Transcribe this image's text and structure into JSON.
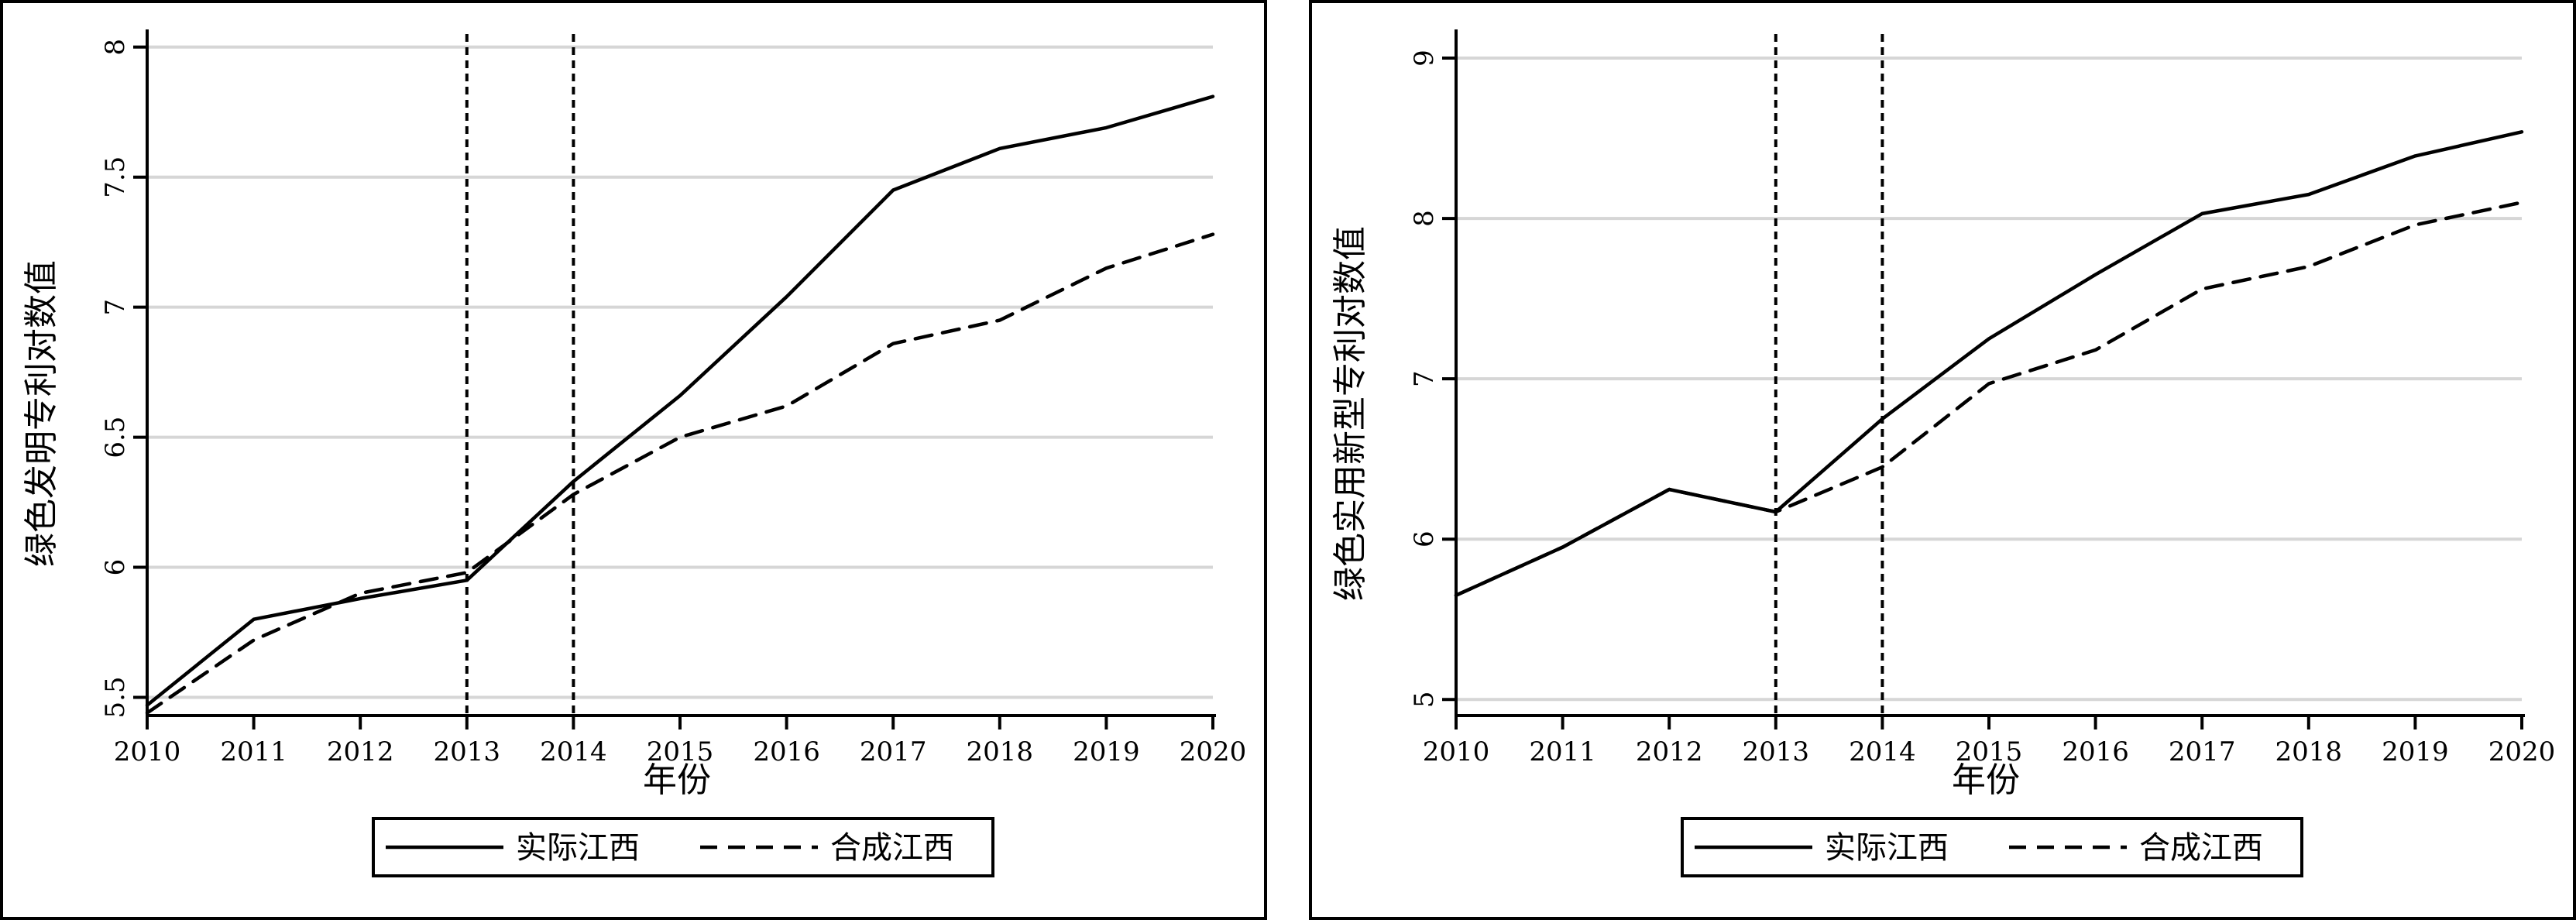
{
  "chart_data": [
    {
      "type": "line",
      "title": "",
      "xlabel": "年份",
      "ylabel": "绿色发明专利对数值",
      "x": [
        2010,
        2011,
        2012,
        2013,
        2014,
        2015,
        2016,
        2017,
        2018,
        2019,
        2020
      ],
      "xlim": [
        2010,
        2020
      ],
      "ylim": [
        5.43,
        8.05
      ],
      "yticks": [
        5.5,
        6,
        6.5,
        7,
        7.5,
        8
      ],
      "ytick_labels": [
        "5.5",
        "6",
        "6.5",
        "7",
        "7.5",
        "8"
      ],
      "grid": true,
      "legend_position": "bottom",
      "vlines": [
        2013,
        2014
      ],
      "series": [
        {
          "name": "实际江西",
          "style": "solid",
          "values": [
            5.47,
            5.8,
            5.88,
            5.95,
            6.33,
            6.66,
            7.04,
            7.45,
            7.61,
            7.69,
            7.81
          ]
        },
        {
          "name": "合成江西",
          "style": "dashed",
          "values": [
            5.44,
            5.72,
            5.9,
            5.98,
            6.28,
            6.5,
            6.62,
            6.86,
            6.95,
            7.15,
            7.28
          ]
        }
      ]
    },
    {
      "type": "line",
      "title": "",
      "xlabel": "年份",
      "ylabel": "绿色实用新型专利对数值",
      "x": [
        2010,
        2011,
        2012,
        2013,
        2014,
        2015,
        2016,
        2017,
        2018,
        2019,
        2020
      ],
      "xlim": [
        2010,
        2020
      ],
      "ylim": [
        4.9,
        9.15
      ],
      "yticks": [
        5,
        6,
        7,
        8,
        9
      ],
      "ytick_labels": [
        "5",
        "6",
        "7",
        "8",
        "9"
      ],
      "grid": true,
      "legend_position": "bottom",
      "vlines": [
        2013,
        2014
      ],
      "series": [
        {
          "name": "实际江西",
          "style": "solid",
          "values": [
            5.65,
            5.95,
            6.31,
            6.17,
            6.75,
            7.25,
            7.65,
            8.03,
            8.15,
            8.39,
            8.54
          ]
        },
        {
          "name": "合成江西",
          "style": "dashed",
          "values": [
            5.65,
            5.95,
            6.31,
            6.17,
            6.45,
            6.97,
            7.18,
            7.56,
            7.7,
            7.96,
            8.1
          ]
        }
      ]
    }
  ]
}
